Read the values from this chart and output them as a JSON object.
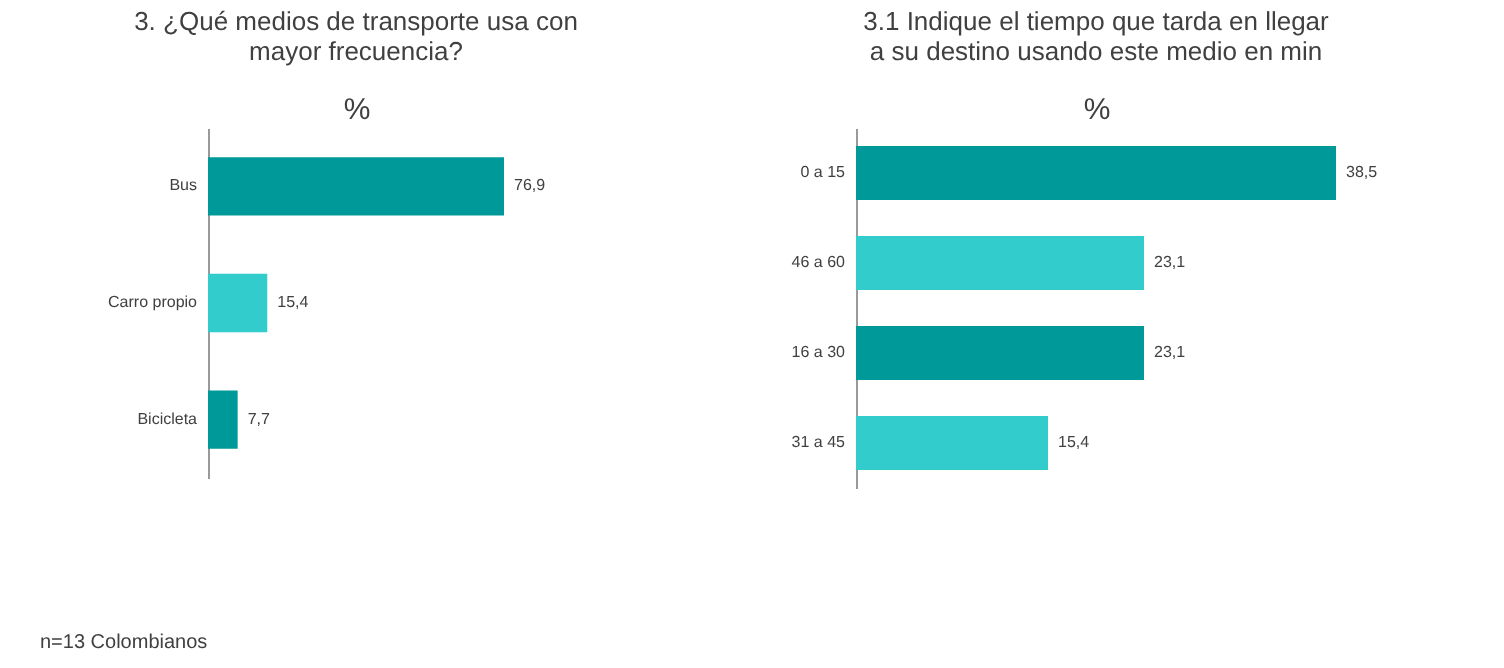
{
  "chart_data": [
    {
      "type": "bar",
      "orientation": "horizontal",
      "title": "3. ¿Qué medios de transporte usa con\nmayor frecuencia?",
      "xlabel": "%",
      "categories": [
        "Bus",
        "Carro propio",
        "Bicicleta"
      ],
      "values": [
        76.9,
        15.4,
        7.7
      ],
      "colors": [
        "#009999",
        "#33cccc",
        "#009999"
      ],
      "value_labels": [
        "76,9",
        "15,4",
        "7,7"
      ],
      "annotations": [
        "n=13 Colombianos"
      ]
    },
    {
      "type": "bar",
      "orientation": "horizontal",
      "title": "3.1 Indique el tiempo que tarda en llegar\na su destino usando este medio en min",
      "xlabel": "%",
      "categories": [
        "0 a 15",
        "46 a 60",
        "16 a 30",
        "31 a 45"
      ],
      "values": [
        38.5,
        23.1,
        23.1,
        15.4
      ],
      "colors": [
        "#009999",
        "#33cccc",
        "#009999",
        "#33cccc"
      ],
      "value_labels": [
        "38,5",
        "23,1",
        "23,1",
        "15,4"
      ]
    }
  ]
}
